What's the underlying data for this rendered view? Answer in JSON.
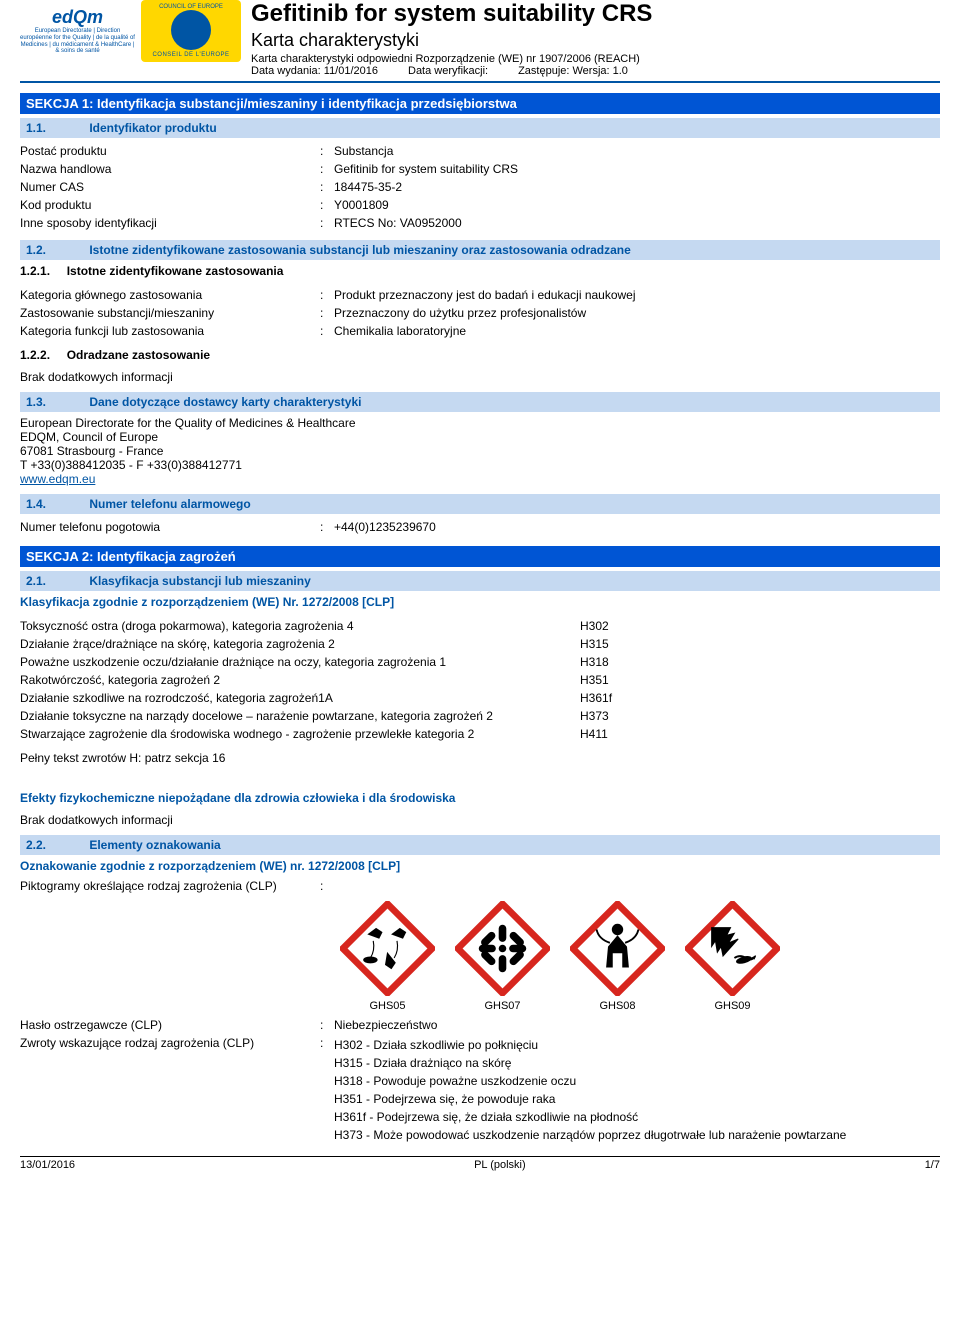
{
  "header": {
    "title": "Gefitinib for system suitability CRS",
    "subtitle": "Karta charakterystyki",
    "regulation": "Karta charakterystyki odpowiedni Rozporządzenie (WE) nr 1907/2006 (REACH)",
    "issue_label": "Data wydania: 11/01/2016",
    "rev_label": "Data weryfikacji:",
    "supersedes_label": "Zastępuje: Wersja: 1.0",
    "edqm_text": "edQm",
    "edqm_sub": "European Directorate | Direction européenne\nfor the Quality | de la qualité\nof Medicines | du médicament\n& HealthCare | & soins de santé",
    "coe_top": "COUNCIL OF EUROPE",
    "coe_bottom": "CONSEIL DE L'EUROPE"
  },
  "s1": {
    "title": "SEKCJA 1: Identyfikacja substancji/mieszaniny i identyfikacja przedsiębiorstwa",
    "s11": {
      "num": "1.1.",
      "title": "Identyfikator produktu"
    },
    "rows": [
      {
        "label": "Postać produktu",
        "val": "Substancja"
      },
      {
        "label": "Nazwa handlowa",
        "val": "Gefitinib for system suitability CRS"
      },
      {
        "label": "Numer CAS",
        "val": "184475-35-2"
      },
      {
        "label": "Kod produktu",
        "val": "Y0001809"
      },
      {
        "label": "Inne sposoby identyfikacji",
        "val": "RTECS No: VA0952000"
      }
    ],
    "s12": {
      "num": "1.2.",
      "title": "Istotne zidentyfikowane zastosowania substancji lub mieszaniny oraz zastosowania odradzane"
    },
    "s121": {
      "num": "1.2.1.",
      "title": "Istotne zidentyfikowane zastosowania"
    },
    "rows121": [
      {
        "label": "Kategoria głównego zastosowania",
        "val": "Produkt przeznaczony jest do badań i edukacji naukowej"
      },
      {
        "label": "Zastosowanie substancji/mieszaniny",
        "val": "Przeznaczony do użytku przez profesjonalistów"
      },
      {
        "label": "Kategoria funkcji lub zastosowania",
        "val": "Chemikalia laboratoryjne"
      }
    ],
    "s122": {
      "num": "1.2.2.",
      "title": "Odradzane zastosowanie"
    },
    "no_info": "Brak dodatkowych informacji",
    "s13": {
      "num": "1.3.",
      "title": "Dane dotyczące dostawcy karty charakterystyki"
    },
    "supplier": {
      "l1": "European Directorate for the Quality of Medicines & Healthcare",
      "l2": "EDQM, Council of Europe",
      "l3": "67081 Strasbourg - France",
      "l4": "T +33(0)388412035 - F +33(0)388412771",
      "link": "www.edqm.eu"
    },
    "s14": {
      "num": "1.4.",
      "title": "Numer telefonu alarmowego"
    },
    "emergency": {
      "label": "Numer telefonu pogotowia",
      "val": "+44(0)1235239670"
    }
  },
  "s2": {
    "title": "SEKCJA 2: Identyfikacja zagrożeń",
    "s21": {
      "num": "2.1.",
      "title": "Klasyfikacja substancji lub mieszaniny"
    },
    "clp_heading": "Klasyfikacja zgodnie z rozporządzeniem (WE) Nr. 1272/2008 [CLP]",
    "class_rows": [
      {
        "label": "Toksyczność ostra (droga pokarmowa), kategoria zagrożenia 4",
        "code": "H302"
      },
      {
        "label": "Działanie żrące/drażniące na skórę, kategoria zagrożenia 2",
        "code": "H315"
      },
      {
        "label": "Poważne uszkodzenie oczu/działanie drażniące na oczy, kategoria zagrożenia 1",
        "code": "H318"
      },
      {
        "label": "Rakotwórczość, kategoria zagrożeń 2",
        "code": "H351"
      },
      {
        "label": "Działanie szkodliwe na rozrodczość, kategoria zagrożeń1A",
        "code": "H361f"
      },
      {
        "label": "Działanie toksyczne na narządy docelowe – narażenie powtarzane, kategoria zagrożeń 2",
        "code": "H373"
      },
      {
        "label": "Stwarzające zagrożenie dla środowiska wodnego - zagrożenie przewlekłe kategoria 2",
        "code": "H411"
      }
    ],
    "full_text_note": "Pełny tekst zwrotów H: patrz sekcja 16",
    "physchem_heading": "Efekty fizykochemiczne niepożądane dla zdrowia człowieka i dla środowiska",
    "no_info": "Brak dodatkowych informacji",
    "s22": {
      "num": "2.2.",
      "title": "Elementy oznakowania"
    },
    "label_heading": "Oznakowanie zgodnie z rozporządzeniem (WE) nr. 1272/2008 [CLP]",
    "picto_label": "Piktogramy określające rodzaj zagrożenia (CLP)",
    "pictos": [
      {
        "code": "GHS05"
      },
      {
        "code": "GHS07"
      },
      {
        "code": "GHS08"
      },
      {
        "code": "GHS09"
      }
    ],
    "signal": {
      "label": "Hasło ostrzegawcze (CLP)",
      "val": "Niebezpieczeństwo"
    },
    "hazard_statements_label": "Zwroty wskazujące rodzaj zagrożenia (CLP)",
    "hazard_statements": [
      "H302 - Działa szkodliwie po połknięciu",
      "H315 - Działa drażniąco na skórę",
      "H318 - Powoduje poważne uszkodzenie oczu",
      "H351 - Podejrzewa się, że powoduje raka",
      "H361f - Podejrzewa się, że działa szkodliwie na płodność",
      "H373 - Może powodować uszkodzenie narządów poprzez długotrwałe lub narażenie powtarzane"
    ]
  },
  "footer": {
    "date": "13/01/2016",
    "lang": "PL (polski)",
    "page": "1/7"
  },
  "colors": {
    "section_bg": "#0055d4",
    "subsection_bg": "#c5d9f1",
    "accent": "#0055a4",
    "picto_red": "#d7261e"
  }
}
